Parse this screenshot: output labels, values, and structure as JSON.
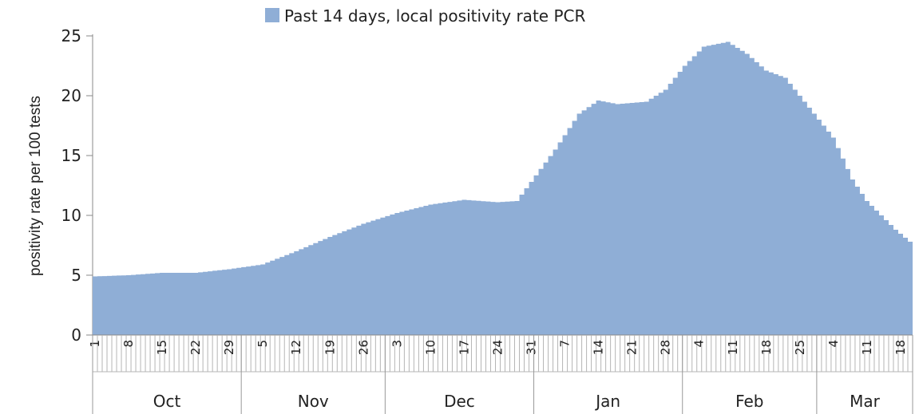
{
  "chart_data": {
    "type": "area",
    "title": "",
    "ylabel": "positivity rate per 100 tests",
    "xlabel": "",
    "ylim": [
      0,
      25
    ],
    "yticks": [
      0,
      5,
      10,
      15,
      20,
      25
    ],
    "legend": {
      "position": "top-center",
      "label": "Past 14 days, local positivity rate PCR"
    },
    "color": "#8faed6",
    "months": [
      {
        "label": "Oct",
        "days": 31
      },
      {
        "label": "Nov",
        "days": 30
      },
      {
        "label": "Dec",
        "days": 31
      },
      {
        "label": "Jan",
        "days": 31
      },
      {
        "label": "Feb",
        "days": 28
      },
      {
        "label": "Mar",
        "days": 20
      }
    ],
    "day_ticks": [
      {
        "label": "1",
        "date": "Oct 1"
      },
      {
        "label": "8",
        "date": "Oct 8"
      },
      {
        "label": "15",
        "date": "Oct 15"
      },
      {
        "label": "22",
        "date": "Oct 22"
      },
      {
        "label": "29",
        "date": "Oct 29"
      },
      {
        "label": "5",
        "date": "Nov 5"
      },
      {
        "label": "12",
        "date": "Nov 12"
      },
      {
        "label": "19",
        "date": "Nov 19"
      },
      {
        "label": "26",
        "date": "Nov 26"
      },
      {
        "label": "3",
        "date": "Dec 3"
      },
      {
        "label": "10",
        "date": "Dec 10"
      },
      {
        "label": "17",
        "date": "Dec 17"
      },
      {
        "label": "24",
        "date": "Dec 24"
      },
      {
        "label": "31",
        "date": "Dec 31"
      },
      {
        "label": "7",
        "date": "Jan 7"
      },
      {
        "label": "14",
        "date": "Jan 14"
      },
      {
        "label": "21",
        "date": "Jan 21"
      },
      {
        "label": "28",
        "date": "Jan 28"
      },
      {
        "label": "4",
        "date": "Feb 4"
      },
      {
        "label": "11",
        "date": "Feb 11"
      },
      {
        "label": "18",
        "date": "Feb 18"
      },
      {
        "label": "25",
        "date": "Feb 25"
      },
      {
        "label": "4",
        "date": "Mar 4"
      },
      {
        "label": "11",
        "date": "Mar 11"
      },
      {
        "label": "18",
        "date": "Mar 18"
      }
    ],
    "series": [
      {
        "name": "Past 14 days, local positivity rate PCR",
        "points": [
          {
            "date": "Oct 1",
            "y": 4.9
          },
          {
            "date": "Oct 8",
            "y": 5.0
          },
          {
            "date": "Oct 15",
            "y": 5.2
          },
          {
            "date": "Oct 22",
            "y": 5.2
          },
          {
            "date": "Oct 29",
            "y": 5.5
          },
          {
            "date": "Nov 5",
            "y": 5.9
          },
          {
            "date": "Nov 12",
            "y": 7.0
          },
          {
            "date": "Nov 19",
            "y": 8.2
          },
          {
            "date": "Nov 26",
            "y": 9.3
          },
          {
            "date": "Dec 3",
            "y": 10.2
          },
          {
            "date": "Dec 10",
            "y": 10.9
          },
          {
            "date": "Dec 17",
            "y": 11.3
          },
          {
            "date": "Dec 24",
            "y": 11.1
          },
          {
            "date": "Dec 28",
            "y": 11.2
          },
          {
            "date": "Dec 31",
            "y": 12.8
          },
          {
            "date": "Jan 5",
            "y": 15.5
          },
          {
            "date": "Jan 10",
            "y": 18.5
          },
          {
            "date": "Jan 14",
            "y": 19.6
          },
          {
            "date": "Jan 18",
            "y": 19.3
          },
          {
            "date": "Jan 24",
            "y": 19.5
          },
          {
            "date": "Jan 28",
            "y": 20.5
          },
          {
            "date": "Feb 1",
            "y": 22.5
          },
          {
            "date": "Feb 5",
            "y": 24.1
          },
          {
            "date": "Feb 10",
            "y": 24.5
          },
          {
            "date": "Feb 14",
            "y": 23.5
          },
          {
            "date": "Feb 18",
            "y": 22.1
          },
          {
            "date": "Feb 22",
            "y": 21.5
          },
          {
            "date": "Feb 26",
            "y": 19.5
          },
          {
            "date": "Mar 1",
            "y": 18.0
          },
          {
            "date": "Mar 4",
            "y": 16.5
          },
          {
            "date": "Mar 8",
            "y": 13.0
          },
          {
            "date": "Mar 11",
            "y": 11.2
          },
          {
            "date": "Mar 14",
            "y": 10.0
          },
          {
            "date": "Mar 17",
            "y": 8.8
          },
          {
            "date": "Mar 20",
            "y": 7.8
          }
        ]
      }
    ]
  }
}
